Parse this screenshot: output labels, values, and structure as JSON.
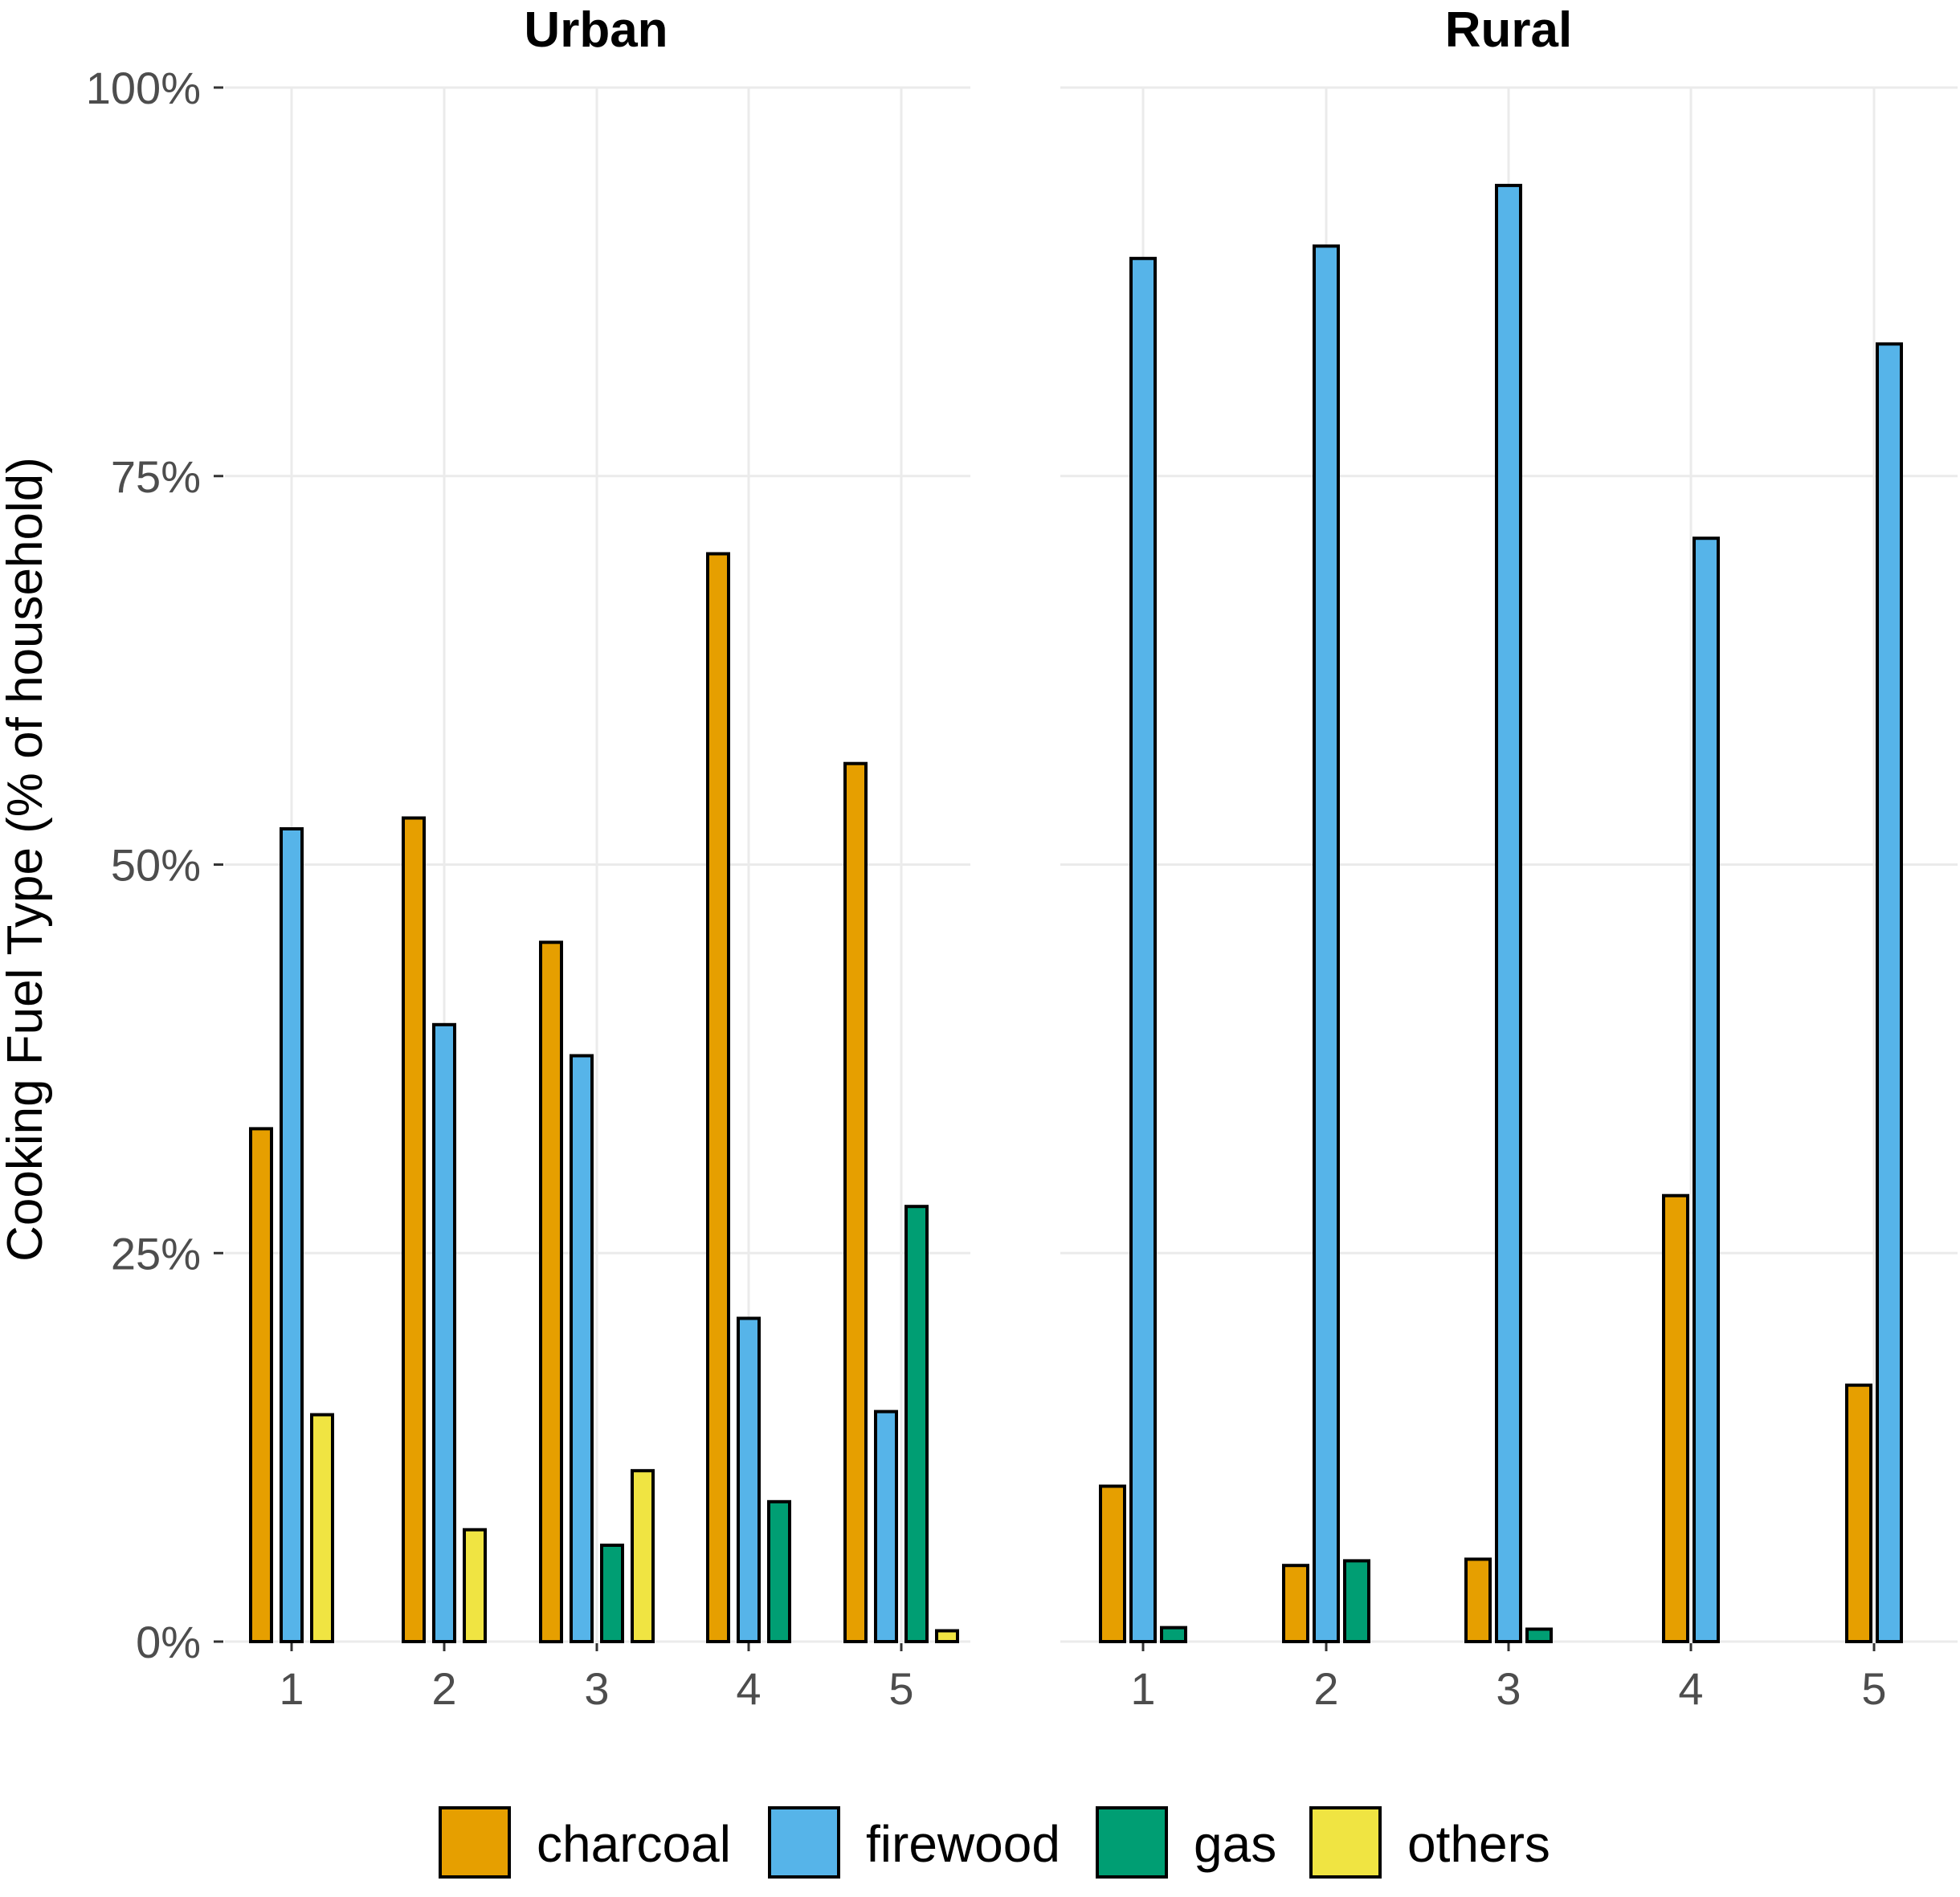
{
  "chart_data": {
    "type": "bar",
    "ylabel": "Cooking Fuel Type (% of household)",
    "ylim": [
      0,
      100
    ],
    "y_ticks": [
      "0%",
      "25%",
      "50%",
      "75%",
      "100%"
    ],
    "grid": true,
    "legend_position": "bottom",
    "panels": [
      {
        "title": "Urban",
        "categories": [
          "1",
          "2",
          "3",
          "4",
          "5"
        ],
        "series": [
          {
            "name": "charcoal",
            "values": [
              33,
              53,
              45,
              70,
              56.5
            ]
          },
          {
            "name": "firewood",
            "values": [
              52.3,
              39.7,
              37.7,
              20.8,
              14.8
            ]
          },
          {
            "name": "gas",
            "values": [
              null,
              null,
              6.2,
              9.0,
              28.0
            ]
          },
          {
            "name": "others",
            "values": [
              14.6,
              7.2,
              11.0,
              null,
              0.7
            ]
          }
        ]
      },
      {
        "title": "Rural",
        "categories": [
          "1",
          "2",
          "3",
          "4",
          "5"
        ],
        "series": [
          {
            "name": "charcoal",
            "values": [
              10.0,
              4.9,
              5.3,
              28.7,
              16.5
            ]
          },
          {
            "name": "firewood",
            "values": [
              89.0,
              89.8,
              93.7,
              71.0,
              83.5
            ]
          },
          {
            "name": "gas",
            "values": [
              0.9,
              5.2,
              0.8,
              null,
              null
            ]
          }
        ]
      }
    ]
  },
  "legend": {
    "items": [
      {
        "label": "charcoal",
        "color": "#E69F00"
      },
      {
        "label": "firewood",
        "color": "#56B4E9"
      },
      {
        "label": "gas",
        "color": "#009E73"
      },
      {
        "label": "others",
        "color": "#F0E442"
      }
    ]
  }
}
